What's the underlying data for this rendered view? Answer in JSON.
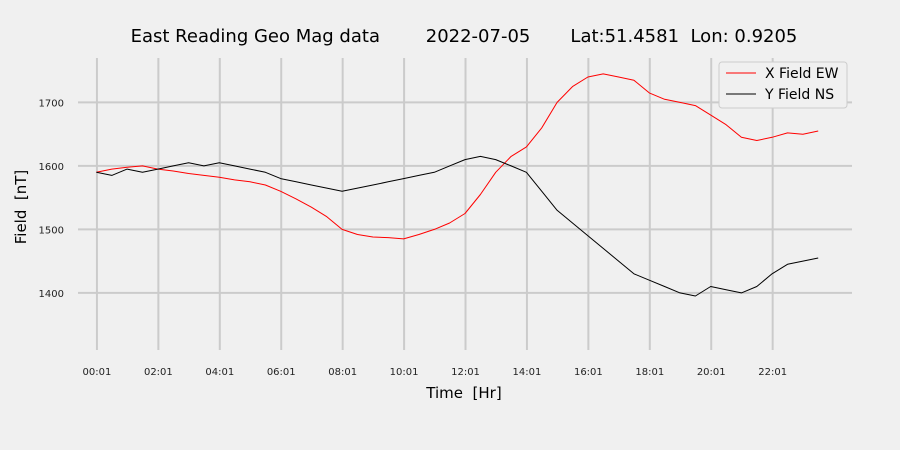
{
  "chart_data": {
    "type": "line",
    "title": "East Reading Geo Mag data        2022-07-05       Lat:51.4581  Lon: 0.9205",
    "xlabel": "Time  [Hr]",
    "ylabel": "Field  [nT]",
    "xlim": [
      -0.6,
      24.6
    ],
    "ylim": [
      1310,
      1770
    ],
    "grid": true,
    "legend_position": "top-right",
    "x_ticks": [
      {
        "value": 0.0167,
        "label": "00:01"
      },
      {
        "value": 2.0167,
        "label": "02:01"
      },
      {
        "value": 4.0167,
        "label": "04:01"
      },
      {
        "value": 6.0167,
        "label": "06:01"
      },
      {
        "value": 8.0167,
        "label": "08:01"
      },
      {
        "value": 10.0167,
        "label": "10:01"
      },
      {
        "value": 12.0167,
        "label": "12:01"
      },
      {
        "value": 14.0167,
        "label": "14:01"
      },
      {
        "value": 16.0167,
        "label": "16:01"
      },
      {
        "value": 18.0167,
        "label": "18:01"
      },
      {
        "value": 20.0167,
        "label": "20:01"
      },
      {
        "value": 22.0167,
        "label": "22:01"
      }
    ],
    "y_ticks": [
      1400,
      1500,
      1600,
      1700
    ],
    "series": [
      {
        "name": "X Field EW",
        "color": "#ff0000",
        "x": [
          0.0,
          0.5,
          1.0,
          1.5,
          2.0,
          2.5,
          3.0,
          3.5,
          4.0,
          4.5,
          5.0,
          5.5,
          6.0,
          6.5,
          7.0,
          7.5,
          8.0,
          8.5,
          9.0,
          9.5,
          10.0,
          10.5,
          11.0,
          11.5,
          12.0,
          12.5,
          13.0,
          13.5,
          14.0,
          14.5,
          15.0,
          15.5,
          16.0,
          16.5,
          17.0,
          17.5,
          18.0,
          18.5,
          19.0,
          19.5,
          20.0,
          20.5,
          21.0,
          21.5,
          22.0,
          22.5,
          23.0,
          23.5
        ],
        "y": [
          1590,
          1595,
          1598,
          1600,
          1595,
          1592,
          1588,
          1585,
          1582,
          1578,
          1575,
          1570,
          1560,
          1548,
          1535,
          1520,
          1500,
          1492,
          1488,
          1487,
          1485,
          1492,
          1500,
          1510,
          1525,
          1555,
          1590,
          1615,
          1630,
          1660,
          1700,
          1725,
          1740,
          1745,
          1740,
          1735,
          1715,
          1705,
          1700,
          1695,
          1680,
          1665,
          1645,
          1640,
          1645,
          1652,
          1650,
          1655
        ]
      },
      {
        "name": "Y Field NS",
        "color": "#000000",
        "x": [
          0.0,
          0.5,
          1.0,
          1.5,
          2.0,
          2.5,
          3.0,
          3.5,
          4.0,
          4.5,
          5.0,
          5.5,
          6.0,
          6.5,
          7.0,
          7.5,
          8.0,
          8.5,
          9.0,
          9.5,
          10.0,
          10.5,
          11.0,
          11.5,
          12.0,
          12.5,
          13.0,
          13.5,
          14.0,
          14.5,
          15.0,
          15.5,
          16.0,
          16.5,
          17.0,
          17.5,
          18.0,
          18.5,
          19.0,
          19.5,
          20.0,
          20.5,
          21.0,
          21.5,
          22.0,
          22.5,
          23.0,
          23.5
        ],
        "y": [
          1590,
          1585,
          1595,
          1590,
          1595,
          1600,
          1605,
          1600,
          1605,
          1600,
          1595,
          1590,
          1580,
          1575,
          1570,
          1565,
          1560,
          1565,
          1570,
          1575,
          1580,
          1585,
          1590,
          1600,
          1610,
          1615,
          1610,
          1600,
          1590,
          1560,
          1530,
          1510,
          1490,
          1470,
          1450,
          1430,
          1420,
          1410,
          1400,
          1395,
          1410,
          1405,
          1400,
          1410,
          1430,
          1445,
          1450,
          1455
        ]
      }
    ]
  }
}
